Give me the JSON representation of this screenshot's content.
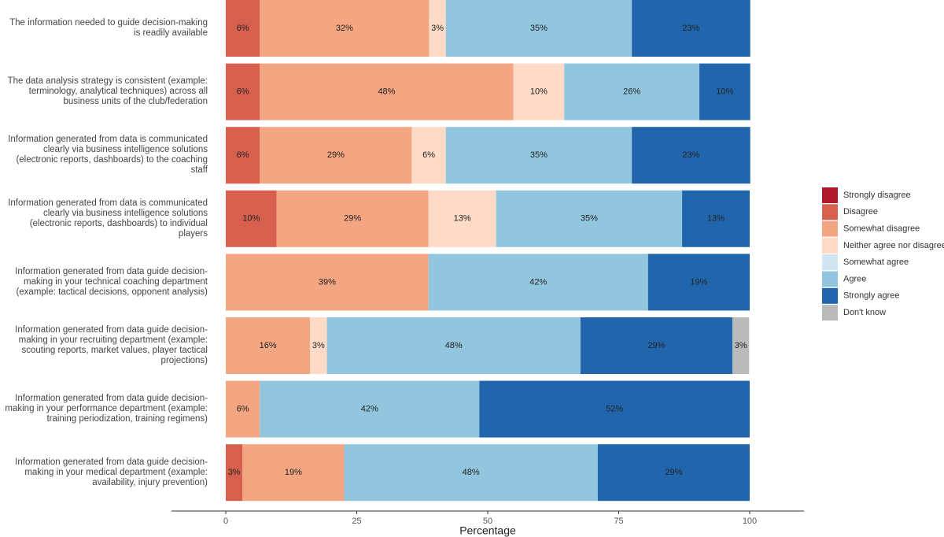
{
  "chart_data": {
    "type": "stacked-barh",
    "categories": [
      "The information needed to guide decision-making is readily available",
      "The data analysis strategy is consistent (example: terminology, analytical techniques) across all business units of the club/federation",
      "Information generated from data is communicated clearly via business intelligence solutions (electronic reports, dashboards) to the coaching staff",
      "Information generated from data is communicated clearly via business intelligence solutions (electronic reports, dashboards) to individual players",
      "Information generated from data guide decision-making in your technical coaching department (example: tactical decisions, opponent analysis)",
      "Information generated from data guide decision-making in your recruiting department (example: scouting reports, market values, player tactical projections)",
      "Information generated from data guide decision-making in your performance department (example: training periodization, training regimens)",
      "Information generated from data guide decision-making in your medical department (example: availability, injury prevention)"
    ],
    "series": [
      {
        "name": "Strongly disagree",
        "color": "#b2182b",
        "values": [
          null,
          null,
          null,
          null,
          null,
          null,
          null,
          null
        ],
        "value_labels": [
          null,
          null,
          null,
          null,
          null,
          null,
          null,
          null
        ]
      },
      {
        "name": "Disagree",
        "color": "#d6604d",
        "values": [
          6.5,
          6.5,
          6.5,
          9.7,
          null,
          null,
          null,
          3.2
        ],
        "value_labels": [
          "6%",
          "6%",
          "6%",
          "10%",
          null,
          null,
          null,
          "3%"
        ]
      },
      {
        "name": "Somewhat disagree",
        "color": "#f4a582",
        "values": [
          32.3,
          48.4,
          29.0,
          29.0,
          38.7,
          16.1,
          6.5,
          19.4
        ],
        "value_labels": [
          "32%",
          "48%",
          "29%",
          "29%",
          "39%",
          "16%",
          "6%",
          "19%"
        ]
      },
      {
        "name": "Neither agree nor disagree",
        "color": "#fddbc7",
        "values": [
          3.2,
          9.7,
          6.5,
          12.9,
          null,
          3.2,
          null,
          null
        ],
        "value_labels": [
          "3%",
          "10%",
          "6%",
          "13%",
          null,
          "3%",
          null,
          null
        ]
      },
      {
        "name": "Somewhat agree",
        "color": "#d1e5f0",
        "values": [
          null,
          null,
          null,
          null,
          null,
          null,
          null,
          null
        ],
        "value_labels": [
          null,
          null,
          null,
          null,
          null,
          null,
          null,
          null
        ]
      },
      {
        "name": "Agree",
        "color": "#92c5de",
        "values": [
          35.5,
          25.8,
          35.5,
          35.5,
          41.9,
          48.4,
          41.9,
          48.4
        ],
        "value_labels": [
          "35%",
          "26%",
          "35%",
          "35%",
          "42%",
          "48%",
          "42%",
          "48%"
        ]
      },
      {
        "name": "Strongly agree",
        "color": "#2166ac",
        "values": [
          22.6,
          9.7,
          22.6,
          12.9,
          19.4,
          29.0,
          51.6,
          29.0
        ],
        "value_labels": [
          "23%",
          "10%",
          "23%",
          "13%",
          "19%",
          "29%",
          "52%",
          "29%"
        ]
      },
      {
        "name": "Don't know",
        "color": "#bababa",
        "values": [
          null,
          null,
          null,
          null,
          null,
          3.2,
          null,
          null
        ],
        "value_labels": [
          null,
          null,
          null,
          null,
          null,
          "3%",
          null,
          null
        ]
      }
    ],
    "xlabel": "Percentage",
    "xlim": [
      0,
      100
    ],
    "xticks": [
      0,
      25,
      50,
      75,
      100
    ],
    "legend": "right"
  }
}
